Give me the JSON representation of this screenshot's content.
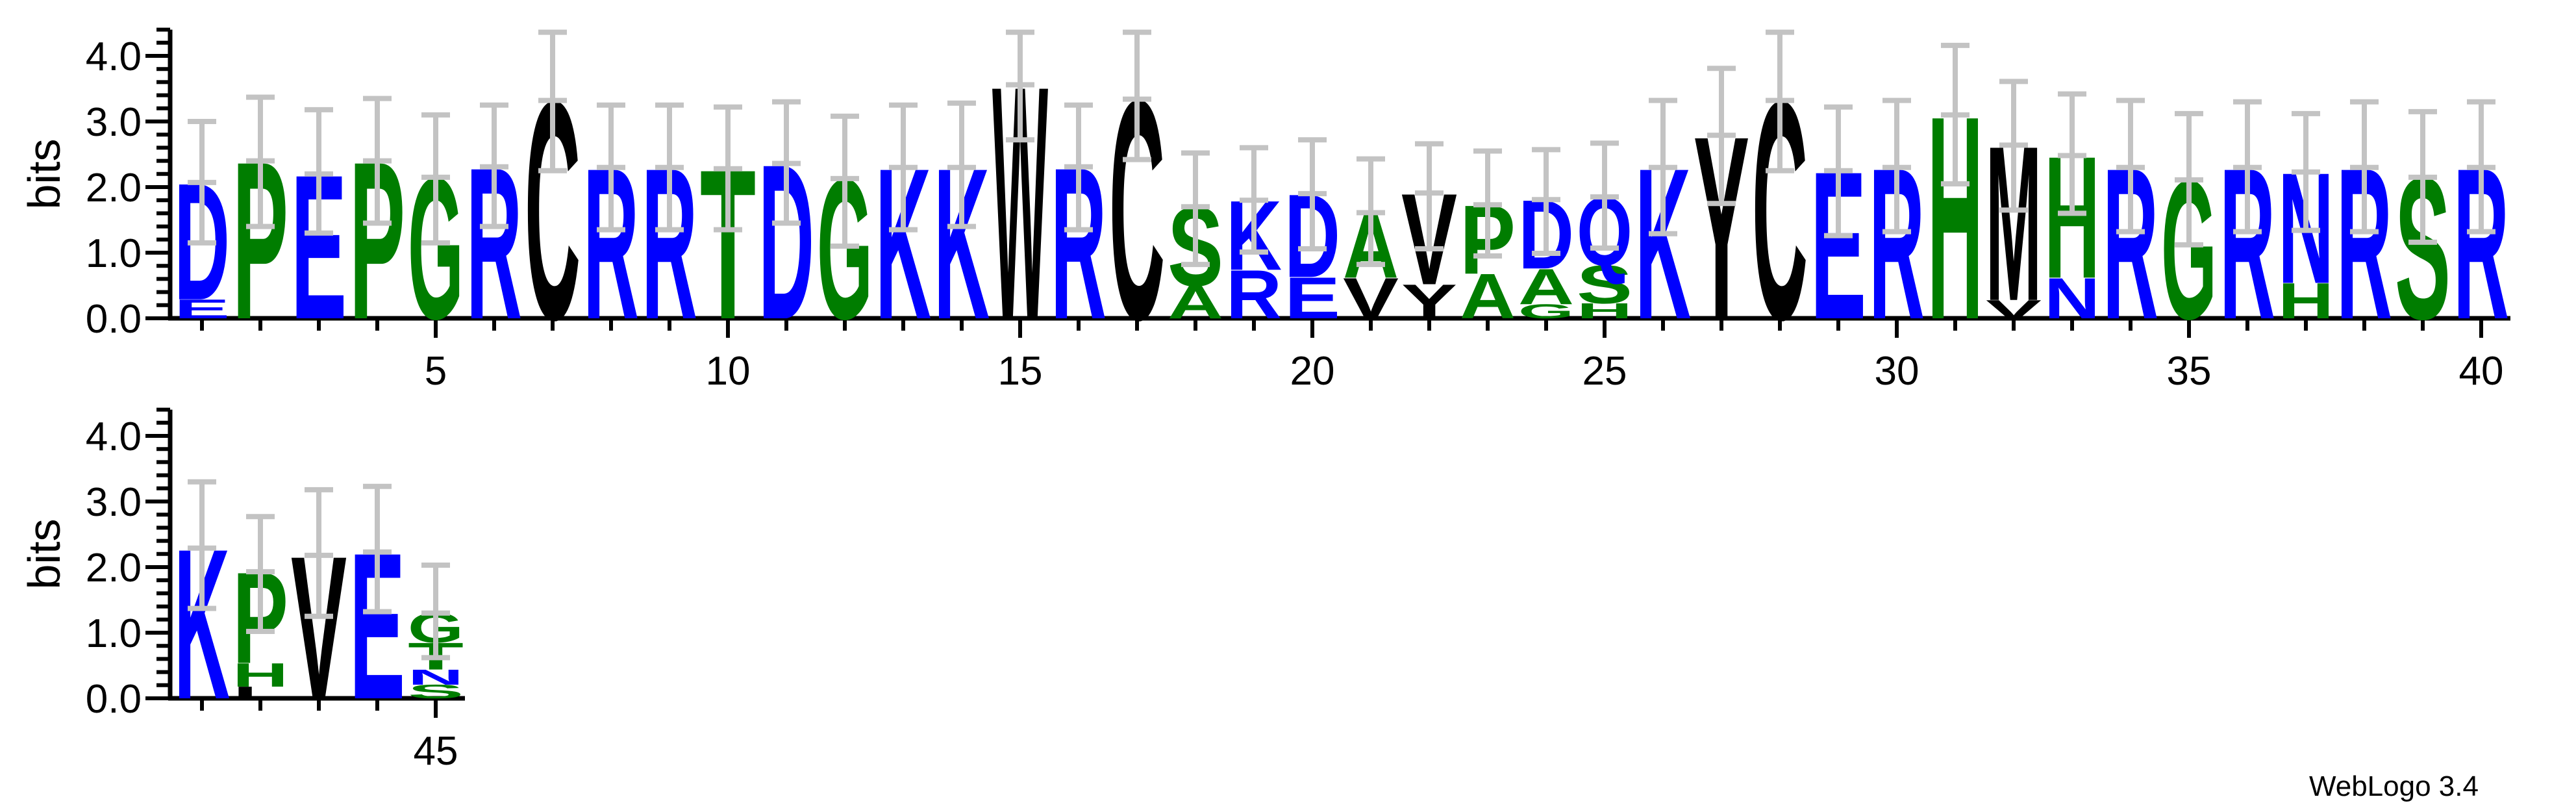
{
  "credit": "WebLogo 3.4",
  "chart_data": {
    "type": "sequence_logo",
    "title": "",
    "ylabel": "bits",
    "units": "bits",
    "ylim": [
      0,
      4.4
    ],
    "yticks": [
      "0.0",
      "1.0",
      "2.0",
      "3.0",
      "4.0"
    ],
    "ytick_minor_step": 0.2,
    "legend": "none",
    "grid": false,
    "palette": {
      "blue": "#0000ff",
      "green": "#007d00",
      "black": "#000000",
      "error_bar": "#c3c3c3",
      "axis": "#000000"
    },
    "letter_colors": {
      "A": "green",
      "C": "black",
      "D": "blue",
      "E": "blue",
      "G": "green",
      "H": "green",
      "K": "blue",
      "L": "black",
      "M": "black",
      "N": "blue",
      "P": "green",
      "Q": "blue",
      "R": "blue",
      "S": "green",
      "T": "green",
      "V": "black",
      "W": "black",
      "Y": "black"
    },
    "rows": [
      {
        "start": 1,
        "end": 40,
        "xticks": [
          5,
          10,
          15,
          20,
          25,
          30,
          35,
          40
        ],
        "positions": [
          {
            "p": 1,
            "stack": [
              [
                "D",
                1.78
              ],
              [
                "E",
                0.29
              ]
            ],
            "err": [
              1.15,
              3.0
            ]
          },
          {
            "p": 2,
            "stack": [
              [
                "P",
                2.4
              ]
            ],
            "err": [
              1.4,
              3.37
            ]
          },
          {
            "p": 3,
            "stack": [
              [
                "E",
                2.2
              ]
            ],
            "err": [
              1.3,
              3.18
            ]
          },
          {
            "p": 4,
            "stack": [
              [
                "P",
                2.4
              ]
            ],
            "err": [
              1.45,
              3.35
            ]
          },
          {
            "p": 5,
            "stack": [
              [
                "G",
                2.15
              ]
            ],
            "err": [
              1.15,
              3.1
            ]
          },
          {
            "p": 6,
            "stack": [
              [
                "R",
                2.31
              ]
            ],
            "err": [
              1.4,
              3.25
            ]
          },
          {
            "p": 7,
            "stack": [
              [
                "C",
                3.32
              ]
            ],
            "err": [
              2.25,
              4.36
            ]
          },
          {
            "p": 8,
            "stack": [
              [
                "R",
                2.3
              ]
            ],
            "err": [
              1.35,
              3.25
            ]
          },
          {
            "p": 9,
            "stack": [
              [
                "R",
                2.3
              ]
            ],
            "err": [
              1.35,
              3.25
            ]
          },
          {
            "p": 10,
            "stack": [
              [
                "T",
                2.28
              ]
            ],
            "err": [
              1.35,
              3.22
            ]
          },
          {
            "p": 11,
            "stack": [
              [
                "D",
                2.36
              ]
            ],
            "err": [
              1.45,
              3.3
            ]
          },
          {
            "p": 12,
            "stack": [
              [
                "G",
                2.13
              ]
            ],
            "err": [
              1.1,
              3.08
            ]
          },
          {
            "p": 13,
            "stack": [
              [
                "K",
                2.3
              ]
            ],
            "err": [
              1.35,
              3.25
            ]
          },
          {
            "p": 14,
            "stack": [
              [
                "K",
                2.3
              ]
            ],
            "err": [
              1.4,
              3.28
            ]
          },
          {
            "p": 15,
            "stack": [
              [
                "W",
                3.56
              ]
            ],
            "err": [
              2.72,
              4.36
            ]
          },
          {
            "p": 16,
            "stack": [
              [
                "R",
                2.31
              ]
            ],
            "err": [
              1.35,
              3.25
            ]
          },
          {
            "p": 17,
            "stack": [
              [
                "C",
                3.34
              ]
            ],
            "err": [
              2.42,
              4.36
            ]
          },
          {
            "p": 18,
            "stack": [
              [
                "S",
                1.2
              ],
              [
                "A",
                0.5
              ]
            ],
            "err": [
              0.82,
              2.52
            ]
          },
          {
            "p": 19,
            "stack": [
              [
                "K",
                1.06
              ],
              [
                "R",
                0.74
              ]
            ],
            "err": [
              1.01,
              2.6
            ]
          },
          {
            "p": 20,
            "stack": [
              [
                "D",
                1.27
              ],
              [
                "E",
                0.63
              ]
            ],
            "err": [
              1.06,
              2.72
            ]
          },
          {
            "p": 21,
            "stack": [
              [
                "A",
                0.99
              ],
              [
                "V",
                0.62
              ]
            ],
            "err": [
              0.82,
              2.43
            ]
          },
          {
            "p": 22,
            "stack": [
              [
                "V",
                1.39
              ],
              [
                "Y",
                0.52
              ]
            ],
            "err": [
              1.06,
              2.66
            ]
          },
          {
            "p": 23,
            "stack": [
              [
                "P",
                1.05
              ],
              [
                "A",
                0.68
              ]
            ],
            "err": [
              0.95,
              2.55
            ]
          },
          {
            "p": 24,
            "stack": [
              [
                "D",
                1.05
              ],
              [
                "A",
                0.54
              ],
              [
                "G",
                0.22
              ]
            ],
            "err": [
              0.99,
              2.57
            ]
          },
          {
            "p": 25,
            "stack": [
              [
                "Q",
                1.04
              ],
              [
                "S",
                0.58
              ],
              [
                "H",
                0.23
              ]
            ],
            "err": [
              1.07,
              2.67
            ]
          },
          {
            "p": 26,
            "stack": [
              [
                "K",
                2.3
              ]
            ],
            "err": [
              1.29,
              3.32
            ]
          },
          {
            "p": 27,
            "stack": [
              [
                "Y",
                2.79
              ]
            ],
            "err": [
              1.75,
              3.81
            ]
          },
          {
            "p": 28,
            "stack": [
              [
                "C",
                3.32
              ]
            ],
            "err": [
              2.25,
              4.36
            ]
          },
          {
            "p": 29,
            "stack": [
              [
                "E",
                2.25
              ]
            ],
            "err": [
              1.26,
              3.22
            ]
          },
          {
            "p": 30,
            "stack": [
              [
                "R",
                2.3
              ]
            ],
            "err": [
              1.32,
              3.32
            ]
          },
          {
            "p": 31,
            "stack": [
              [
                "H",
                3.1
              ]
            ],
            "err": [
              2.05,
              4.16
            ]
          },
          {
            "p": 32,
            "stack": [
              [
                "M",
                2.36
              ],
              [
                "V",
                0.28
              ]
            ],
            "err": [
              1.65,
              3.61
            ]
          },
          {
            "p": 33,
            "stack": [
              [
                "H",
                1.86
              ],
              [
                "N",
                0.62
              ]
            ],
            "err": [
              1.6,
              3.42
            ]
          },
          {
            "p": 34,
            "stack": [
              [
                "R",
                2.3
              ]
            ],
            "err": [
              1.32,
              3.32
            ]
          },
          {
            "p": 35,
            "stack": [
              [
                "G",
                2.11
              ]
            ],
            "err": [
              1.12,
              3.12
            ]
          },
          {
            "p": 36,
            "stack": [
              [
                "R",
                2.3
              ]
            ],
            "err": [
              1.32,
              3.3
            ]
          },
          {
            "p": 37,
            "stack": [
              [
                "N",
                1.69
              ],
              [
                "H",
                0.54
              ]
            ],
            "err": [
              1.34,
              3.12
            ]
          },
          {
            "p": 38,
            "stack": [
              [
                "R",
                2.3
              ]
            ],
            "err": [
              1.32,
              3.3
            ]
          },
          {
            "p": 39,
            "stack": [
              [
                "S",
                2.15
              ]
            ],
            "err": [
              1.16,
              3.15
            ]
          },
          {
            "p": 40,
            "stack": [
              [
                "R",
                2.3
              ]
            ],
            "err": [
              1.32,
              3.3
            ]
          }
        ]
      },
      {
        "start": 41,
        "end": 45,
        "xticks": [
          45
        ],
        "positions": [
          {
            "p": 41,
            "stack": [
              [
                "K",
                2.29
              ]
            ],
            "err": [
              1.37,
              3.3
            ]
          },
          {
            "p": 42,
            "stack": [
              [
                "P",
                1.39
              ],
              [
                "H",
                0.36
              ],
              [
                "L",
                0.18
              ]
            ],
            "err": [
              1.02,
              2.77
            ]
          },
          {
            "p": 43,
            "stack": [
              [
                "V",
                2.18
              ]
            ],
            "err": [
              1.25,
              3.18
            ]
          },
          {
            "p": 44,
            "stack": [
              [
                "E",
                2.23
              ]
            ],
            "err": [
              1.32,
              3.23
            ]
          },
          {
            "p": 45,
            "stack": [
              [
                "G",
                0.45
              ],
              [
                "T",
                0.41
              ],
              [
                "N",
                0.23
              ],
              [
                "S",
                0.21
              ]
            ],
            "err": [
              0.62,
              2.03
            ]
          }
        ]
      }
    ]
  }
}
